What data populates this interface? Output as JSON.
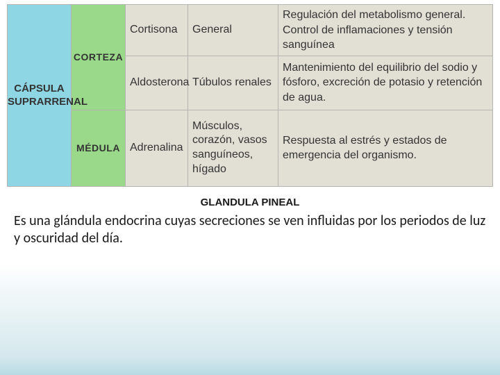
{
  "table": {
    "capsule_label": "CÁPSULA SUPRARRENAL",
    "colors": {
      "capsule_bg": "#8fd6e4",
      "zone_bg": "#9ad98a",
      "cell_bg": "#e2e0d5",
      "border": "#b5b5b0"
    },
    "rows": [
      {
        "zone": "CORTEZA",
        "hormone": "Cortisona",
        "target": "General",
        "function": "Regulación del metabolismo general. Control de inflamaciones y tensión sanguínea"
      },
      {
        "zone": "",
        "hormone": "Aldosterona",
        "target": "Túbulos renales",
        "function": "Mantenimiento del equilibrio del sodio y fósforo, excreción de potasio y retención de agua."
      },
      {
        "zone": "MÉDULA",
        "hormone": "Adrenalina",
        "target": "Músculos, corazón, vasos sanguíneos, hígado",
        "function": "Respuesta al estrés y estados de emergencia del organismo."
      }
    ]
  },
  "heading": "GLANDULA PINEAL",
  "body": "Es una glándula endocrina cuyas secreciones se ven influidas por los periodos de luz y oscuridad del día."
}
